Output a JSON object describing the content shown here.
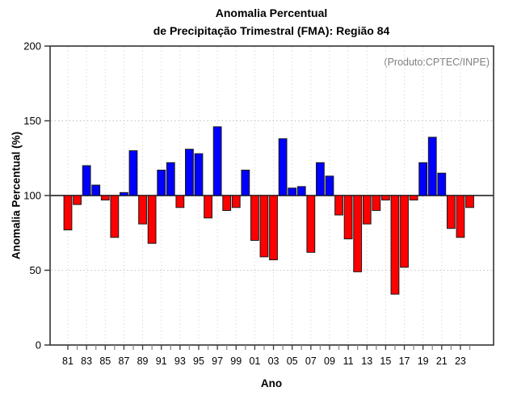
{
  "header": {
    "title_line1": "Anomalia Percentual",
    "title_line2": "de Precipitação Trimestral (FMA): Região 84"
  },
  "annotation": "(Produto:CPTEC/INPE)",
  "chart_data": {
    "type": "bar",
    "title": "Anomalia Percentual de Precipitação Trimestral (FMA): Região 84",
    "xlabel": "Ano",
    "ylabel": "Anomalia Percentual (%)",
    "ylim": [
      0,
      200
    ],
    "yticks": [
      0,
      50,
      100,
      150,
      200
    ],
    "baseline": 100,
    "grid_y_dotted": [
      50,
      150
    ],
    "grid_vertical_every_other_year": true,
    "legend": "none",
    "categories": [
      "81",
      "82",
      "83",
      "84",
      "85",
      "86",
      "87",
      "88",
      "89",
      "90",
      "91",
      "92",
      "93",
      "94",
      "95",
      "96",
      "97",
      "98",
      "99",
      "00",
      "01",
      "02",
      "03",
      "04",
      "05",
      "06",
      "07",
      "08",
      "09",
      "10",
      "11",
      "12",
      "13",
      "14",
      "15",
      "16",
      "17",
      "18",
      "19",
      "20",
      "21",
      "22",
      "23",
      "24"
    ],
    "xtick_labels_shown": [
      "81",
      "83",
      "85",
      "87",
      "89",
      "91",
      "93",
      "95",
      "97",
      "99",
      "01",
      "03",
      "05",
      "07",
      "09",
      "11",
      "13",
      "15",
      "17",
      "19",
      "21",
      "23"
    ],
    "values": [
      77,
      94,
      120,
      107,
      97,
      72,
      102,
      130,
      81,
      68,
      117,
      122,
      92,
      131,
      128,
      85,
      146,
      90,
      92,
      117,
      70,
      59,
      57,
      138,
      105,
      106,
      62,
      122,
      113,
      87,
      71,
      49,
      81,
      90,
      97,
      34,
      52,
      97,
      122,
      139,
      115,
      78,
      72,
      92
    ],
    "colors": {
      "above_baseline": "#0000ff",
      "below_baseline": "#ff0000",
      "bar_outline": "#1a1a1a",
      "baseline_line": "#333333",
      "frame": "#333333",
      "grid_h": "#c4c4c4",
      "grid_v": "#dcdcdc",
      "tick": "#3a3a3a",
      "annotation_text": "#808080"
    }
  }
}
